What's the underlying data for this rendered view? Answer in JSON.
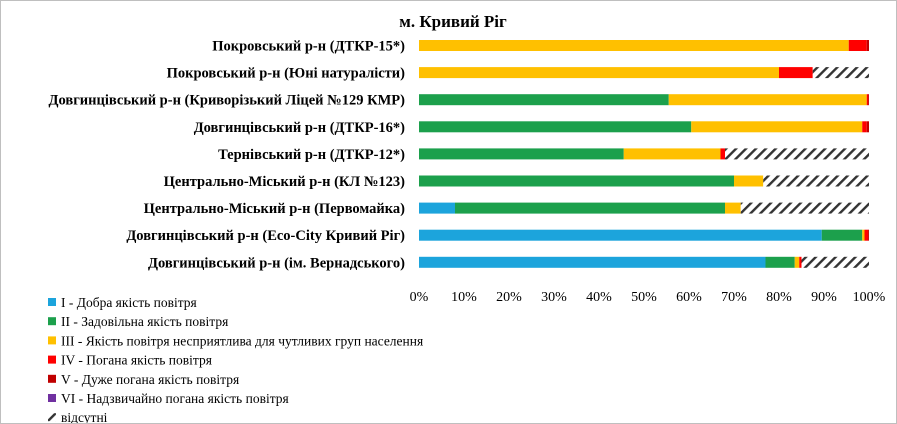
{
  "chart_data": {
    "type": "bar",
    "orientation": "horizontal",
    "stacked": "percent",
    "title": "м. Кривий Ріг",
    "xlabel": "",
    "ylabel": "",
    "xlim": [
      0,
      100
    ],
    "x_ticks": [
      "0%",
      "10%",
      "20%",
      "30%",
      "40%",
      "50%",
      "60%",
      "70%",
      "80%",
      "90%",
      "100%"
    ],
    "grid": false,
    "legend_position": "bottom-left",
    "categories": [
      "Покровський р-н (ДТКР-15*)",
      "Покровський р-н (Юні натуралісти)",
      "Довгинцівський р-н (Криворізький Ліцей №129 КМР)",
      "Довгинцівський р-н (ДТКР-16*)",
      "Тернівський р-н (ДТКР-12*)",
      "Центрально-Міський р-н (КЛ №123)",
      "Центрально-Міський р-н (Первомайка)",
      "Довгинцівський р-н (Eco-City Кривий Ріг)",
      "Довгинцівський р-н (ім. Вернадського)"
    ],
    "series": [
      {
        "name": "I - Добра якість повітря",
        "color": "#1CA4DC",
        "values": [
          0,
          0,
          0,
          0,
          0,
          0,
          8,
          89.5,
          77
        ]
      },
      {
        "name": "II - Задовільна якість повітря",
        "color": "#1CA04C",
        "values": [
          0,
          0,
          55.5,
          60.5,
          45.5,
          70,
          60,
          9,
          6.5
        ]
      },
      {
        "name": "III - Якість повітря несприятлива для чутливих груп населення",
        "color": "#FFC000",
        "values": [
          95.5,
          80,
          44,
          38,
          21.5,
          6.5,
          3.5,
          0.5,
          1
        ]
      },
      {
        "name": "IV - Погана якість повітря",
        "color": "#FF0000",
        "values": [
          4,
          7.5,
          0.3,
          1,
          1,
          0,
          0,
          0.8,
          0.5
        ]
      },
      {
        "name": "V - Дуже погана якість повітря",
        "color": "#C00000",
        "values": [
          0.5,
          0,
          0.2,
          0.5,
          0,
          0,
          0,
          0.2,
          0
        ]
      },
      {
        "name": "VI - Надзвичайно погана якість повітря",
        "color": "#7030A0",
        "values": [
          0,
          0,
          0,
          0,
          0,
          0,
          0,
          0,
          0
        ]
      },
      {
        "name": "відсутні",
        "color": "#000000",
        "pattern": "hatch",
        "values": [
          0,
          12.5,
          0,
          0,
          32,
          23.5,
          28.5,
          0,
          15
        ]
      }
    ]
  }
}
